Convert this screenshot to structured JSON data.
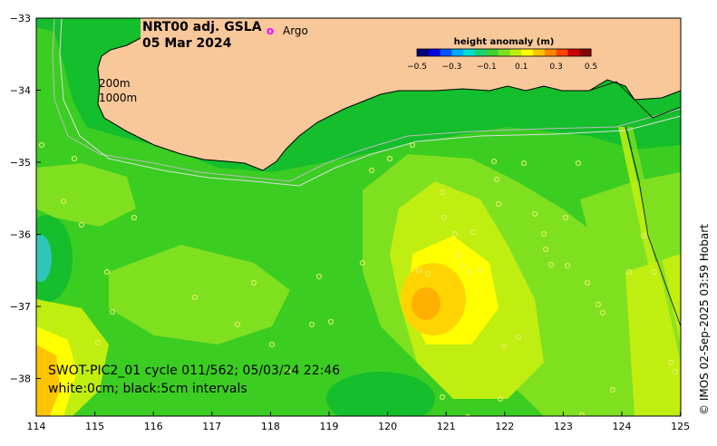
{
  "title": {
    "product": "NRT00 adj. GSLA",
    "date": "05 Mar 2024"
  },
  "legend": {
    "argo_symbol": "o",
    "argo_label": "Argo",
    "argo_color": "#ff00ff"
  },
  "colorbar": {
    "title": "height anomaly (m)",
    "tick_labels": [
      "−0.5",
      "−0.3",
      "−0.1",
      "0.1",
      "0.3",
      "0.5"
    ],
    "colors": [
      "#00007a",
      "#0000dd",
      "#0055ff",
      "#00aaff",
      "#00ddd0",
      "#20d070",
      "#40d030",
      "#7fe020",
      "#c0ee10",
      "#ffff00",
      "#ffc400",
      "#ff8800",
      "#ff4400",
      "#cc0000",
      "#880000"
    ]
  },
  "contour_labels": {
    "shallow": "200m",
    "deep": "1000m"
  },
  "axes": {
    "x_ticks": [
      "114",
      "115",
      "116",
      "117",
      "118",
      "119",
      "120",
      "121",
      "122",
      "123",
      "124",
      "125"
    ],
    "y_ticks": [
      "−33",
      "−34",
      "−35",
      "−36",
      "−37",
      "−38"
    ]
  },
  "swot": {
    "line1": "SWOT-PIC2_01 cycle 011/562; 05/03/24 22:46",
    "line2": "white:0cm; black:5cm intervals"
  },
  "credit": "© IMOS 02-Sep-2025 03:59 Hobart",
  "palette": {
    "land": "#f9c89a",
    "deep_green": "#14be2c",
    "green": "#3ccd22",
    "light_green": "#7fe020",
    "yellow_green": "#c0ee10",
    "yellow": "#ffff00",
    "orange": "#ffc400",
    "cyan": "#2fc6b8"
  }
}
